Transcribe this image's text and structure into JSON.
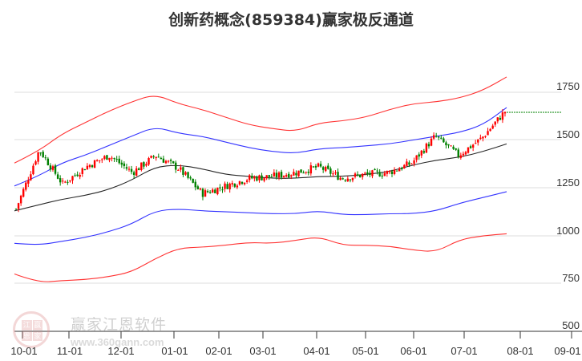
{
  "title": "创新药概念(859384)赢家极反通道",
  "watermark": {
    "brand": "赢家江恩软件",
    "url": "www.360gann.com",
    "logo_chars": [
      "江",
      "赢",
      "恩",
      "家"
    ]
  },
  "colors": {
    "up_candle": "#ff0000",
    "down_candle": "#008000",
    "outer_band": "#ff0000",
    "inner_band": "#0000ff",
    "mid_line": "#000000",
    "last_price_line": "#008000",
    "grid": "#dddddd",
    "axis": "#333333"
  },
  "y_axis": {
    "ticks": [
      "1750",
      "1500",
      "1250",
      "1000",
      "750",
      "500"
    ]
  },
  "x_axis": {
    "ticks": [
      "10-01",
      "11-01",
      "12-01",
      "01-01",
      "02-01",
      "03-01",
      "04-01",
      "05-01",
      "06-01",
      "07-01",
      "08-01",
      "09-01"
    ]
  },
  "chart_data": {
    "type": "candlestick",
    "title": "创新药概念(859384)赢家极反通道",
    "xlabel": "",
    "ylabel": "",
    "ylim": [
      500,
      1850
    ],
    "grid": true,
    "y_ticks": [
      500,
      750,
      1000,
      1250,
      1500,
      1750
    ],
    "x_ticks": [
      "10-01",
      "11-01",
      "12-01",
      "01-01",
      "02-01",
      "03-01",
      "04-01",
      "05-01",
      "06-01",
      "07-01",
      "08-01",
      "09-01"
    ],
    "x": [
      "09-20",
      "10-01",
      "10-15",
      "11-01",
      "11-15",
      "12-01",
      "12-15",
      "01-01",
      "01-15",
      "02-01",
      "02-15",
      "03-01",
      "03-15",
      "04-01",
      "04-15",
      "05-01",
      "05-15",
      "06-01",
      "06-15",
      "07-01",
      "07-15",
      "07-25"
    ],
    "series": [
      {
        "name": "Upper outer band (red)",
        "values": [
          1380,
          1440,
          1530,
          1590,
          1650,
          1700,
          1740,
          1690,
          1660,
          1620,
          1580,
          1560,
          1545,
          1590,
          1600,
          1620,
          1660,
          1690,
          1700,
          1720,
          1760,
          1830
        ]
      },
      {
        "name": "Upper inner band (blue)",
        "values": [
          1260,
          1310,
          1380,
          1420,
          1470,
          1520,
          1570,
          1535,
          1520,
          1490,
          1460,
          1440,
          1430,
          1455,
          1460,
          1470,
          1480,
          1500,
          1520,
          1540,
          1580,
          1670
        ]
      },
      {
        "name": "Middle line (black)",
        "values": [
          1130,
          1160,
          1190,
          1210,
          1240,
          1290,
          1360,
          1370,
          1350,
          1320,
          1310,
          1300,
          1300,
          1310,
          1310,
          1320,
          1335,
          1370,
          1395,
          1410,
          1440,
          1480
        ]
      },
      {
        "name": "Lower inner band (blue)",
        "values": [
          960,
          950,
          970,
          990,
          1020,
          1060,
          1130,
          1140,
          1130,
          1125,
          1120,
          1115,
          1115,
          1130,
          1110,
          1110,
          1115,
          1115,
          1130,
          1170,
          1200,
          1230
        ]
      },
      {
        "name": "Lower outer band (red)",
        "values": [
          800,
          755,
          765,
          770,
          785,
          810,
          880,
          935,
          940,
          950,
          965,
          960,
          975,
          995,
          950,
          950,
          945,
          925,
          915,
          980,
          1000,
          1010
        ]
      },
      {
        "name": "Close (candles)",
        "values": [
          1140,
          1450,
          1270,
          1360,
          1420,
          1330,
          1420,
          1350,
          1220,
          1260,
          1300,
          1310,
          1330,
          1360,
          1300,
          1320,
          1330,
          1380,
          1520,
          1420,
          1510,
          1650
        ]
      }
    ],
    "last_price": 1640,
    "notes": "Candlestick price series with 5-line 'winner reversal channel' (赢家极反通道); dashed green horizontal line marks last price ~1640 extended to right edge."
  }
}
